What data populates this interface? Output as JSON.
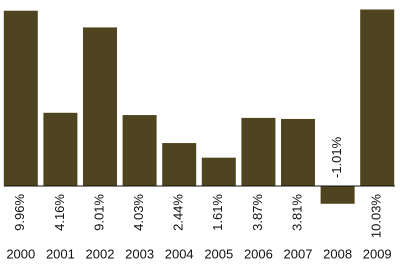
{
  "chart_data": {
    "type": "bar",
    "categories": [
      "2000",
      "2001",
      "2002",
      "2003",
      "2004",
      "2005",
      "2006",
      "2007",
      "2008",
      "2009"
    ],
    "values": [
      9.96,
      4.16,
      9.01,
      4.03,
      2.44,
      1.61,
      3.87,
      3.81,
      -1.01,
      10.03
    ],
    "value_labels": [
      "9.96%",
      "4.16%",
      "9.01%",
      "4.03%",
      "2.44%",
      "1.61%",
      "3.87%",
      "3.81%",
      "-1.01%",
      "10.03%"
    ],
    "color": "#4e4420"
  }
}
